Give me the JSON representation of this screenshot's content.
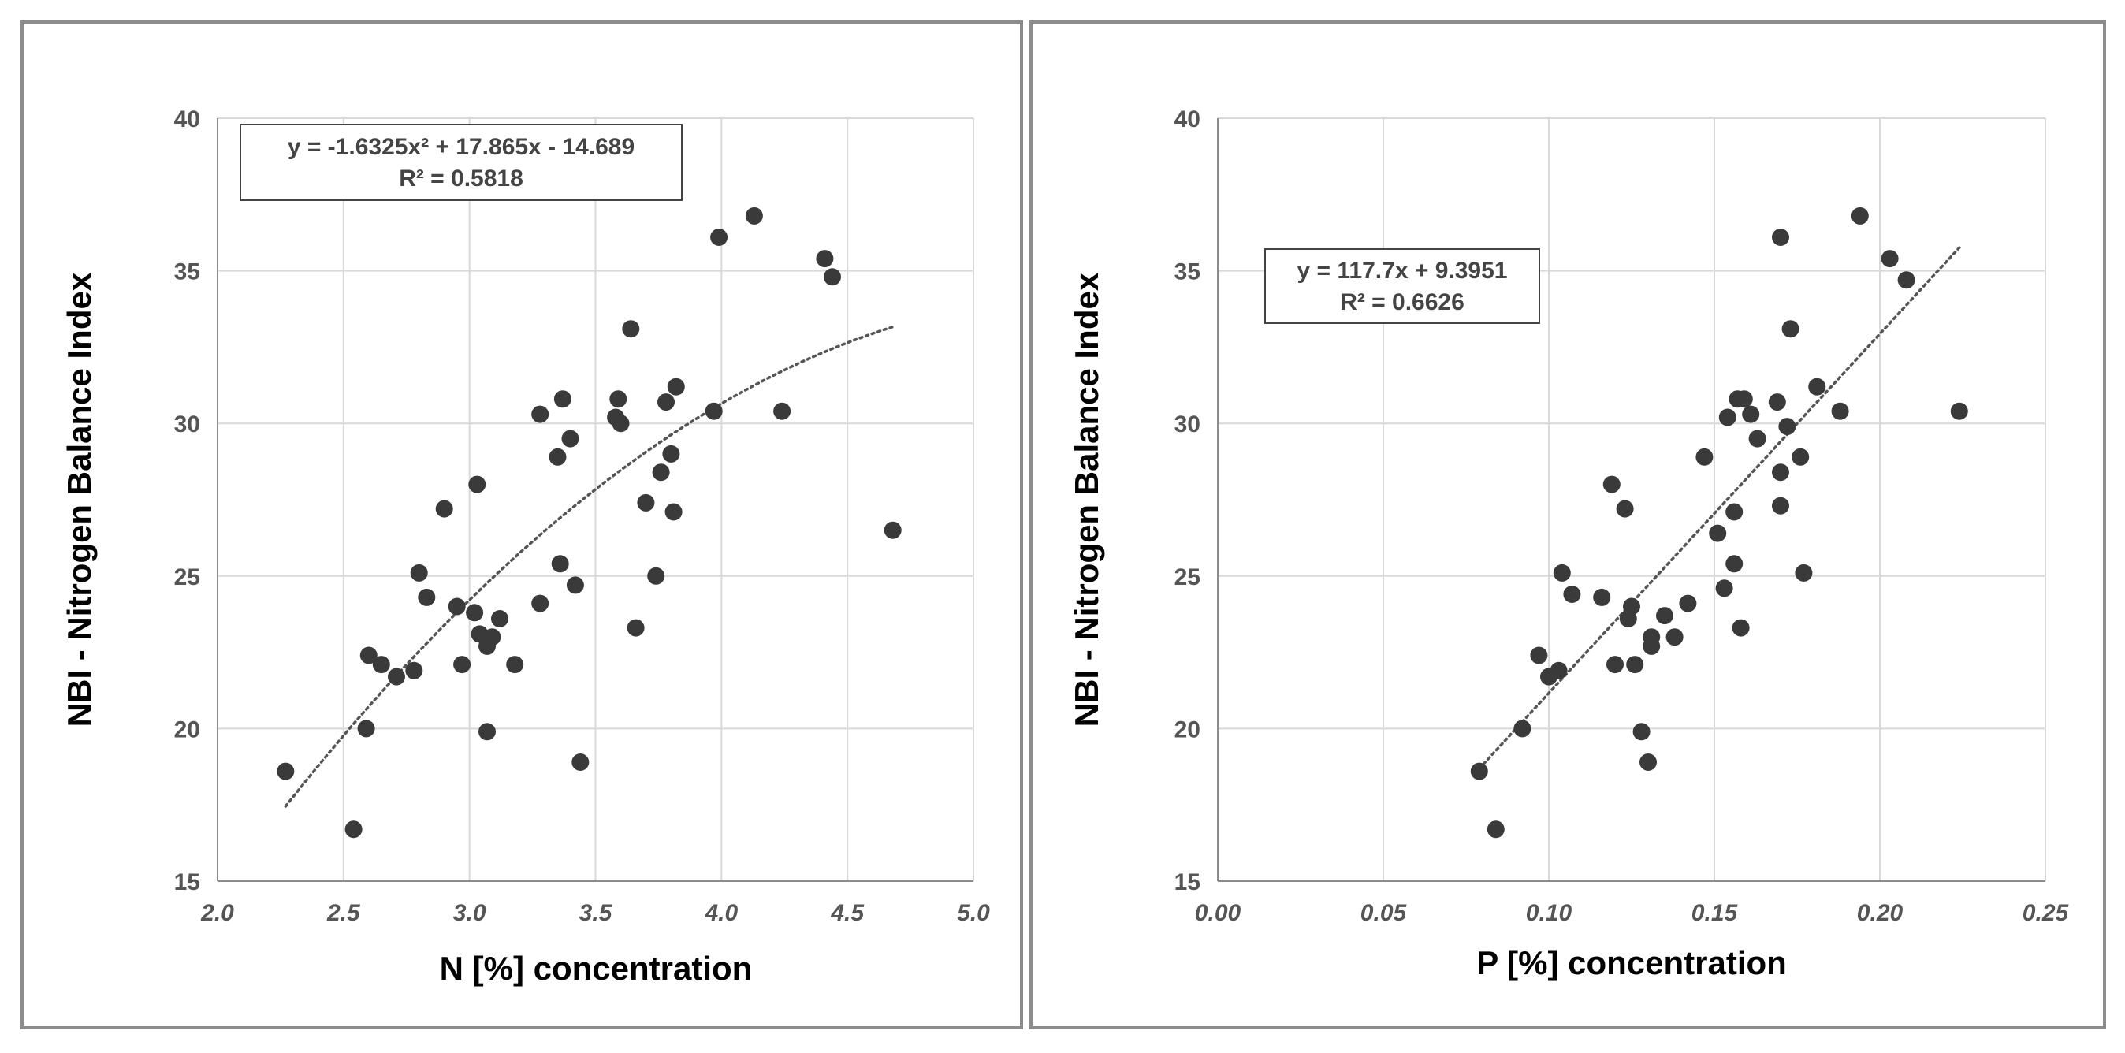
{
  "chart_data": [
    {
      "type": "scatter",
      "title": "",
      "xlabel": "N [%] concentration",
      "ylabel": "NBI - Nitrogen Balance Index",
      "xlim": [
        2.0,
        5.0
      ],
      "ylim": [
        15,
        40
      ],
      "x_ticks": [
        "2.0",
        "2.5",
        "3.0",
        "3.5",
        "4.0",
        "4.5",
        "5.0"
      ],
      "y_ticks": [
        "15",
        "20",
        "25",
        "30",
        "35",
        "40"
      ],
      "grid": true,
      "trendline": {
        "type": "poly2",
        "coefficients": [
          -1.6325,
          17.865,
          -14.689
        ],
        "x_range": [
          2.27,
          4.68
        ],
        "style": "dotted"
      },
      "equation_lines": [
        "y = -1.6325x² + 17.865x - 14.689",
        "R² = 0.5818"
      ],
      "annotation_position": "top-left",
      "colors": {
        "marker": "#3a3a3a",
        "grid": "#d9d9d9",
        "trend": "#555555"
      },
      "points": [
        [
          2.27,
          18.6
        ],
        [
          2.54,
          16.7
        ],
        [
          2.59,
          20.0
        ],
        [
          2.6,
          22.4
        ],
        [
          2.65,
          22.1
        ],
        [
          2.71,
          21.7
        ],
        [
          2.78,
          21.9
        ],
        [
          2.8,
          25.1
        ],
        [
          2.83,
          24.3
        ],
        [
          2.9,
          27.2
        ],
        [
          2.95,
          24.0
        ],
        [
          2.97,
          22.1
        ],
        [
          3.02,
          23.8
        ],
        [
          3.03,
          28.0
        ],
        [
          3.04,
          23.1
        ],
        [
          3.07,
          22.7
        ],
        [
          3.07,
          19.9
        ],
        [
          3.09,
          23.0
        ],
        [
          3.12,
          23.6
        ],
        [
          3.18,
          22.1
        ],
        [
          3.28,
          30.3
        ],
        [
          3.28,
          24.1
        ],
        [
          3.35,
          28.9
        ],
        [
          3.36,
          25.4
        ],
        [
          3.37,
          30.8
        ],
        [
          3.4,
          29.5
        ],
        [
          3.42,
          24.7
        ],
        [
          3.44,
          18.9
        ],
        [
          3.58,
          30.2
        ],
        [
          3.59,
          30.8
        ],
        [
          3.6,
          30.0
        ],
        [
          3.64,
          33.1
        ],
        [
          3.66,
          23.3
        ],
        [
          3.7,
          27.4
        ],
        [
          3.74,
          25.0
        ],
        [
          3.76,
          28.4
        ],
        [
          3.78,
          30.7
        ],
        [
          3.8,
          29.0
        ],
        [
          3.81,
          27.1
        ],
        [
          3.82,
          31.2
        ],
        [
          3.97,
          30.4
        ],
        [
          3.99,
          36.1
        ],
        [
          4.13,
          36.8
        ],
        [
          4.24,
          30.4
        ],
        [
          4.41,
          35.4
        ],
        [
          4.44,
          34.8
        ],
        [
          4.68,
          26.5
        ]
      ]
    },
    {
      "type": "scatter",
      "title": "",
      "xlabel": "P [%] concentration",
      "ylabel": "NBI - Nitrogen Balance Index",
      "xlim": [
        0.0,
        0.25
      ],
      "ylim": [
        15,
        40
      ],
      "x_ticks": [
        "0.00",
        "0.05",
        "0.10",
        "0.15",
        "0.20",
        "0.25"
      ],
      "y_ticks": [
        "15",
        "20",
        "25",
        "30",
        "35",
        "40"
      ],
      "grid": true,
      "trendline": {
        "type": "linear",
        "coefficients": [
          117.7,
          9.3951
        ],
        "x_range": [
          0.079,
          0.224
        ],
        "style": "dotted"
      },
      "equation_lines": [
        "y = 117.7x + 9.3951",
        "R² = 0.6626"
      ],
      "annotation_position": "upper-left",
      "colors": {
        "marker": "#3a3a3a",
        "grid": "#d9d9d9",
        "trend": "#555555"
      },
      "points": [
        [
          0.079,
          18.6
        ],
        [
          0.084,
          16.7
        ],
        [
          0.092,
          20.0
        ],
        [
          0.097,
          22.4
        ],
        [
          0.1,
          21.7
        ],
        [
          0.103,
          21.9
        ],
        [
          0.104,
          25.1
        ],
        [
          0.107,
          24.4
        ],
        [
          0.116,
          24.3
        ],
        [
          0.119,
          28.0
        ],
        [
          0.12,
          22.1
        ],
        [
          0.123,
          27.2
        ],
        [
          0.124,
          23.6
        ],
        [
          0.125,
          24.0
        ],
        [
          0.126,
          22.1
        ],
        [
          0.128,
          19.9
        ],
        [
          0.13,
          18.9
        ],
        [
          0.131,
          23.0
        ],
        [
          0.131,
          22.7
        ],
        [
          0.135,
          23.7
        ],
        [
          0.138,
          23.0
        ],
        [
          0.142,
          24.1
        ],
        [
          0.147,
          28.9
        ],
        [
          0.151,
          26.4
        ],
        [
          0.153,
          24.6
        ],
        [
          0.154,
          30.2
        ],
        [
          0.156,
          27.1
        ],
        [
          0.156,
          25.4
        ],
        [
          0.157,
          30.8
        ],
        [
          0.158,
          23.3
        ],
        [
          0.159,
          30.8
        ],
        [
          0.161,
          30.3
        ],
        [
          0.163,
          29.5
        ],
        [
          0.169,
          30.7
        ],
        [
          0.17,
          28.4
        ],
        [
          0.17,
          36.1
        ],
        [
          0.17,
          27.3
        ],
        [
          0.172,
          29.9
        ],
        [
          0.173,
          33.1
        ],
        [
          0.176,
          28.9
        ],
        [
          0.177,
          25.1
        ],
        [
          0.181,
          31.2
        ],
        [
          0.188,
          30.4
        ],
        [
          0.194,
          36.8
        ],
        [
          0.203,
          35.4
        ],
        [
          0.208,
          34.7
        ],
        [
          0.224,
          30.4
        ]
      ]
    }
  ]
}
